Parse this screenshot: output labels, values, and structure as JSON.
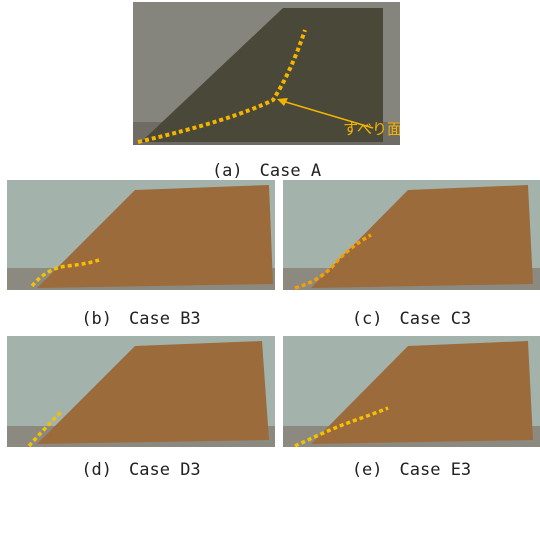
{
  "figure": {
    "panels": [
      {
        "caption": "(a)　Case A",
        "annotation": "すべり面"
      },
      {
        "caption": "(b)　Case B3"
      },
      {
        "caption": "(c)　Case C3"
      },
      {
        "caption": "(d)　Case D3"
      },
      {
        "caption": "(e)　Case E3"
      }
    ]
  }
}
